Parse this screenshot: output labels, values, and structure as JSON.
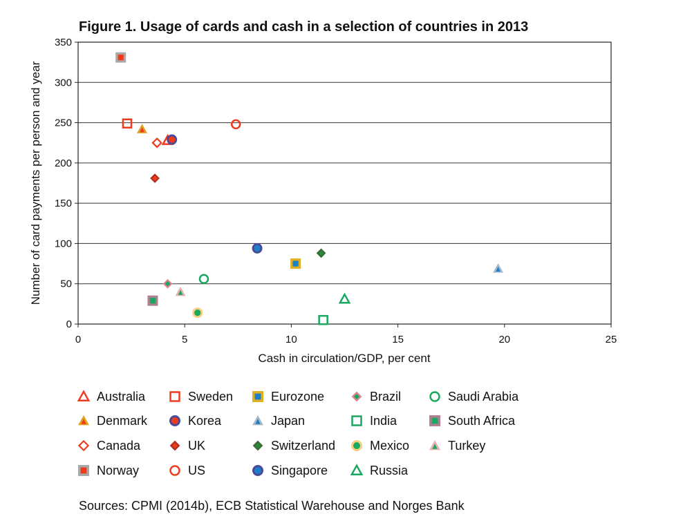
{
  "figure": {
    "title": "Figure 1. Usage of cards and cash in a selection of countries in 2013",
    "sources": "Sources: CPMI (2014b), ECB Statistical Warehouse and Norges Bank"
  },
  "chart_data": {
    "type": "scatter",
    "title": "Figure 1. Usage of cards and cash in a selection of countries in 2013",
    "xlabel": "Cash in circulation/GDP, per cent",
    "ylabel": "Number of card payments per person and year",
    "xlim": [
      0,
      25
    ],
    "ylim": [
      0,
      350
    ],
    "xticks": [
      0,
      5,
      10,
      15,
      20,
      25
    ],
    "yticks": [
      0,
      50,
      100,
      150,
      200,
      250,
      300,
      350
    ],
    "grid": "horizontal",
    "legend_position": "bottom",
    "series": [
      {
        "name": "Australia",
        "marker": "triangle-open",
        "color": "#ee3b1e",
        "x": 4.2,
        "y": 228
      },
      {
        "name": "Denmark",
        "marker": "triangle-filled",
        "color": "#ee3b1e",
        "outline": "#e0a020",
        "x": 3.0,
        "y": 242
      },
      {
        "name": "Canada",
        "marker": "diamond-open",
        "color": "#ee3b1e",
        "x": 3.7,
        "y": 225
      },
      {
        "name": "Norway",
        "marker": "square-filled",
        "color": "#ee3b1e",
        "outline": "#a9a9a9",
        "x": 2.0,
        "y": 331
      },
      {
        "name": "Sweden",
        "marker": "square-open",
        "color": "#ee3b1e",
        "x": 2.3,
        "y": 249
      },
      {
        "name": "Korea",
        "marker": "circle-filled",
        "color": "#ee3b1e",
        "outline": "#4a4a9a",
        "x": 4.4,
        "y": 229
      },
      {
        "name": "UK",
        "marker": "diamond-filled",
        "color": "#ee3b1e",
        "outline": "#b03020",
        "x": 3.6,
        "y": 181
      },
      {
        "name": "US",
        "marker": "circle-open",
        "color": "#ee3b1e",
        "x": 7.4,
        "y": 248
      },
      {
        "name": "Eurozone",
        "marker": "square-filled",
        "color": "#1f7fc6",
        "outline": "#e0b020",
        "x": 10.2,
        "y": 75
      },
      {
        "name": "Japan",
        "marker": "triangle-filled",
        "color": "#1f7fc6",
        "outline": "#a8b8c8",
        "x": 19.7,
        "y": 69
      },
      {
        "name": "Switzerland",
        "marker": "diamond-filled",
        "color": "#2a8a3a",
        "outline": "#3a6a3a",
        "x": 11.4,
        "y": 88
      },
      {
        "name": "Singapore",
        "marker": "circle-filled",
        "color": "#1f7fc6",
        "outline": "#4a4a9a",
        "x": 8.4,
        "y": 94
      },
      {
        "name": "Brazil",
        "marker": "diamond-filled",
        "color": "#1aa860",
        "outline": "#e08090",
        "x": 4.2,
        "y": 50
      },
      {
        "name": "India",
        "marker": "square-open",
        "color": "#1aa860",
        "x": 11.5,
        "y": 5
      },
      {
        "name": "Mexico",
        "marker": "circle-filled",
        "color": "#1aa860",
        "outline": "#f5d080",
        "x": 5.6,
        "y": 14
      },
      {
        "name": "Russia",
        "marker": "triangle-open",
        "color": "#1aa860",
        "x": 12.5,
        "y": 31
      },
      {
        "name": "Saudi Arabia",
        "marker": "circle-open",
        "color": "#1aa860",
        "x": 5.9,
        "y": 56
      },
      {
        "name": "South Africa",
        "marker": "square-filled",
        "color": "#1aa860",
        "outline": "#b08090",
        "x": 3.5,
        "y": 29
      },
      {
        "name": "Turkey",
        "marker": "triangle-filled",
        "color": "#1aa860",
        "outline": "#e8b0b0",
        "x": 4.8,
        "y": 40
      }
    ],
    "legend_columns": [
      [
        "Australia",
        "Denmark",
        "Canada",
        "Norway"
      ],
      [
        "Sweden",
        "Korea",
        "UK",
        "US"
      ],
      [
        "Eurozone",
        "Japan",
        "Switzerland",
        "Singapore"
      ],
      [
        "Brazil",
        "India",
        "Mexico",
        "Russia"
      ],
      [
        "Saudi Arabia",
        "South Africa",
        "Turkey"
      ]
    ]
  }
}
